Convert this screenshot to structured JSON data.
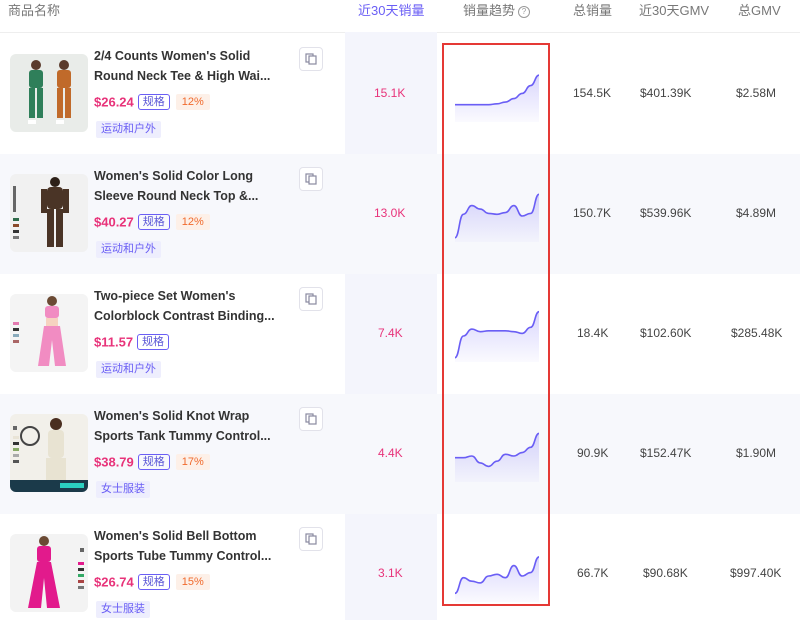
{
  "header": {
    "product_name": "商品名称",
    "sales_30d": "近30天销量",
    "sales_trend": "销量趋势",
    "total_sales": "总销量",
    "gmv_30d": "近30天GMV",
    "total_gmv": "总GMV",
    "help_icon": "?"
  },
  "colors": {
    "accent": "#6a5ef5",
    "price": "#e8337a",
    "highlight": "#e53935",
    "discount": "#f06a2d"
  },
  "products": [
    {
      "title_line1": "2/4 Counts Women's Solid",
      "title_line2": "Round Neck Tee & High Wai...",
      "price": "$26.24",
      "spec_label": "规格",
      "discount": "12%",
      "category": "运动和户外",
      "sales_30d": "15.1K",
      "total_sales": "154.5K",
      "gmv_30d": "$401.39K",
      "total_gmv": "$2.58M",
      "trend": [
        20,
        20,
        20,
        20,
        20,
        21,
        23,
        27,
        33,
        42,
        54
      ]
    },
    {
      "title_line1": "Women's Solid Color Long",
      "title_line2": "Sleeve Round Neck Top &...",
      "price": "$40.27",
      "spec_label": "规格",
      "discount": "12%",
      "category": "运动和户外",
      "sales_30d": "13.0K",
      "total_sales": "150.7K",
      "gmv_30d": "$539.96K",
      "total_gmv": "$4.89M",
      "trend": [
        5,
        32,
        42,
        38,
        33,
        32,
        34,
        42,
        30,
        33,
        55
      ]
    },
    {
      "title_line1": "Two-piece Set Women's",
      "title_line2": "Colorblock Contrast Binding...",
      "price": "$11.57",
      "spec_label": "规格",
      "discount": "",
      "category": "运动和户外",
      "sales_30d": "7.4K",
      "total_sales": "18.4K",
      "gmv_30d": "$102.60K",
      "total_gmv": "$285.48K",
      "trend": [
        5,
        30,
        38,
        35,
        36,
        36,
        36,
        35,
        33,
        40,
        58
      ]
    },
    {
      "title_line1": "Women's Solid Knot Wrap",
      "title_line2": "Sports Tank Tummy Control...",
      "price": "$38.79",
      "spec_label": "规格",
      "discount": "17%",
      "category": "女士服装",
      "sales_30d": "4.4K",
      "total_sales": "90.9K",
      "gmv_30d": "$152.47K",
      "total_gmv": "$1.90M",
      "trend": [
        28,
        28,
        30,
        22,
        18,
        24,
        32,
        30,
        34,
        40,
        56
      ]
    },
    {
      "title_line1": "Women's Solid Bell Bottom",
      "title_line2": "Sports Tube Tummy Control...",
      "price": "$26.74",
      "spec_label": "规格",
      "discount": "15%",
      "category": "女士服装",
      "sales_30d": "3.1K",
      "total_sales": "66.7K",
      "gmv_30d": "$90.68K",
      "total_gmv": "$997.40K",
      "trend": [
        10,
        28,
        24,
        22,
        30,
        32,
        28,
        42,
        30,
        34,
        52
      ]
    }
  ]
}
